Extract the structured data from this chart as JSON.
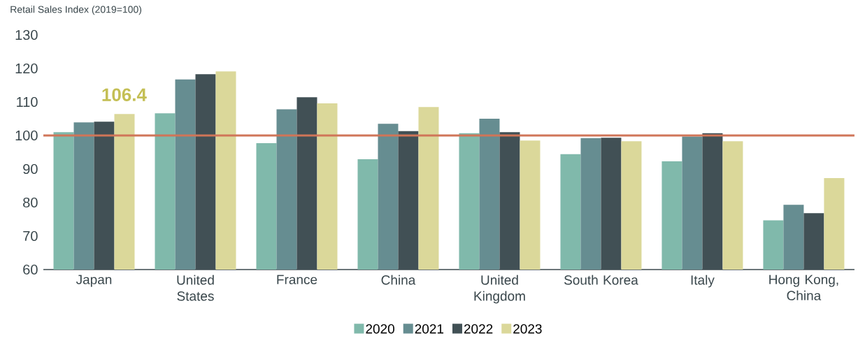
{
  "chart_data": {
    "type": "bar",
    "title": "Retail Sales Index (2019=100)",
    "categories": [
      "Japan",
      "United States",
      "France",
      "China",
      "United Kingdom",
      "South Korea",
      "Italy",
      "Hong Kong, China"
    ],
    "series": [
      {
        "name": "2020",
        "color": "#80b9ab",
        "values": [
          101.0,
          106.6,
          97.7,
          92.9,
          100.7,
          94.4,
          92.3,
          74.7
        ]
      },
      {
        "name": "2021",
        "color": "#668d91",
        "values": [
          103.9,
          116.7,
          107.8,
          103.5,
          105.0,
          99.2,
          99.7,
          79.3
        ]
      },
      {
        "name": "2022",
        "color": "#415055",
        "values": [
          104.1,
          118.3,
          111.4,
          101.3,
          101.0,
          99.3,
          100.7,
          76.8
        ]
      },
      {
        "name": "2023",
        "color": "#dbd89a",
        "values": [
          106.4,
          119.1,
          109.6,
          108.5,
          98.5,
          98.3,
          98.3,
          87.3
        ]
      }
    ],
    "ylim": [
      60,
      130
    ],
    "yticks": [
      60,
      70,
      80,
      90,
      100,
      110,
      120,
      130
    ],
    "ref_lines": [
      {
        "axis": "y",
        "value": 100,
        "color": "#d07558"
      }
    ],
    "annotations": [
      "106.4"
    ],
    "legend": "bottom"
  }
}
